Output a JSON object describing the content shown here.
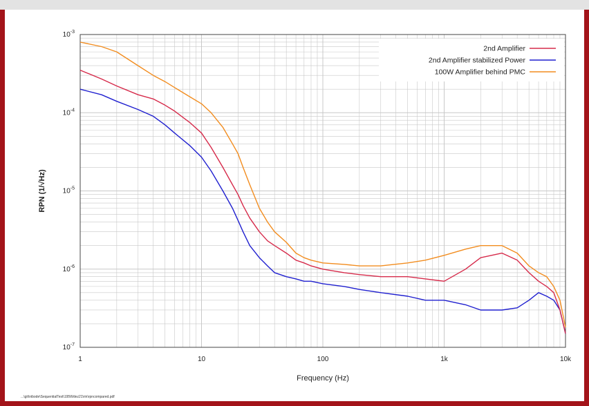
{
  "colors": {
    "frame": "#a3141a",
    "grid": "#c8c8c8",
    "axes": "#444444"
  },
  "file_path": "...\\git\\nibode\\SequentialTest\\195Wdez21\\rin\\rpncompared.pdf",
  "chart_data": {
    "type": "line",
    "xlabel": "Frequency (Hz)",
    "ylabel": "RPN (1/√Hz)",
    "x_scale": "log",
    "y_scale": "log",
    "xlim": [
      1,
      10000
    ],
    "ylim": [
      1e-07,
      0.001
    ],
    "grid": true,
    "legend_position": "top-right",
    "x_ticks": [
      {
        "value": 1,
        "label": "1"
      },
      {
        "value": 10,
        "label": "10"
      },
      {
        "value": 100,
        "label": "100"
      },
      {
        "value": 1000,
        "label": "1k"
      },
      {
        "value": 10000,
        "label": "10k"
      }
    ],
    "y_ticks": [
      {
        "value": 0.001,
        "label": "10-3"
      },
      {
        "value": 0.0001,
        "label": "10-4"
      },
      {
        "value": 1e-05,
        "label": "10-5"
      },
      {
        "value": 1e-06,
        "label": "10-6"
      },
      {
        "value": 1e-07,
        "label": "10-7"
      }
    ],
    "series": [
      {
        "name": "2nd Amplifier",
        "color": "#d62a4a",
        "x": [
          1,
          1.5,
          2,
          3,
          4,
          5,
          6,
          8,
          10,
          12,
          15,
          18,
          20,
          22,
          25,
          30,
          35,
          40,
          50,
          60,
          70,
          80,
          100,
          150,
          200,
          300,
          500,
          700,
          1000,
          1500,
          2000,
          3000,
          4000,
          5000,
          6000,
          7000,
          8000,
          9000,
          10000
        ],
        "y": [
          0.00035,
          0.00027,
          0.00022,
          0.00017,
          0.00015,
          0.000125,
          0.000105,
          7.5e-05,
          5.5e-05,
          3.6e-05,
          2e-05,
          1.2e-05,
          9e-06,
          6.5e-06,
          4.5e-06,
          3e-06,
          2.3e-06,
          2e-06,
          1.6e-06,
          1.3e-06,
          1.2e-06,
          1.1e-06,
          1e-06,
          9e-07,
          8.5e-07,
          8e-07,
          8e-07,
          7.5e-07,
          7e-07,
          1e-06,
          1.4e-06,
          1.6e-06,
          1.3e-06,
          9e-07,
          7e-07,
          6e-07,
          5e-07,
          3e-07,
          1.5e-07
        ]
      },
      {
        "name": "2nd Amplifier stabilized Power",
        "color": "#1f1fcf",
        "x": [
          1,
          1.5,
          2,
          3,
          4,
          5,
          6,
          8,
          10,
          12,
          15,
          18,
          20,
          22,
          25,
          30,
          35,
          40,
          50,
          60,
          70,
          80,
          100,
          150,
          200,
          300,
          500,
          700,
          1000,
          1500,
          2000,
          3000,
          4000,
          5000,
          6000,
          7000,
          8000,
          9000,
          10000
        ],
        "y": [
          0.0002,
          0.00017,
          0.00014,
          0.00011,
          9e-05,
          7e-05,
          5.5e-05,
          3.8e-05,
          2.7e-05,
          1.8e-05,
          1e-05,
          6e-06,
          4.2e-06,
          3e-06,
          2e-06,
          1.4e-06,
          1.1e-06,
          9e-07,
          8e-07,
          7.5e-07,
          7e-07,
          7e-07,
          6.5e-07,
          6e-07,
          5.5e-07,
          5e-07,
          4.5e-07,
          4e-07,
          4e-07,
          3.5e-07,
          3e-07,
          3e-07,
          3.2e-07,
          4e-07,
          5e-07,
          4.5e-07,
          4e-07,
          3e-07,
          1.5e-07
        ]
      },
      {
        "name": "100W Amplifier behind PMC",
        "color": "#f28c1e",
        "x": [
          1,
          1.5,
          2,
          3,
          4,
          5,
          6,
          8,
          10,
          12,
          15,
          18,
          20,
          22,
          25,
          30,
          35,
          40,
          50,
          60,
          70,
          80,
          100,
          150,
          200,
          300,
          500,
          700,
          1000,
          1500,
          2000,
          3000,
          4000,
          5000,
          6000,
          7000,
          8000,
          9000,
          10000
        ],
        "y": [
          0.0008,
          0.0007,
          0.0006,
          0.0004,
          0.0003,
          0.00025,
          0.00021,
          0.00016,
          0.00013,
          0.0001,
          6.5e-05,
          4e-05,
          3e-05,
          2e-05,
          1.2e-05,
          6e-06,
          4e-06,
          3e-06,
          2.2e-06,
          1.6e-06,
          1.4e-06,
          1.3e-06,
          1.2e-06,
          1.15e-06,
          1.1e-06,
          1.1e-06,
          1.2e-06,
          1.3e-06,
          1.5e-06,
          1.8e-06,
          2e-06,
          2e-06,
          1.6e-06,
          1.1e-06,
          9e-07,
          8e-07,
          6e-07,
          4e-07,
          1.8e-07
        ]
      }
    ]
  }
}
